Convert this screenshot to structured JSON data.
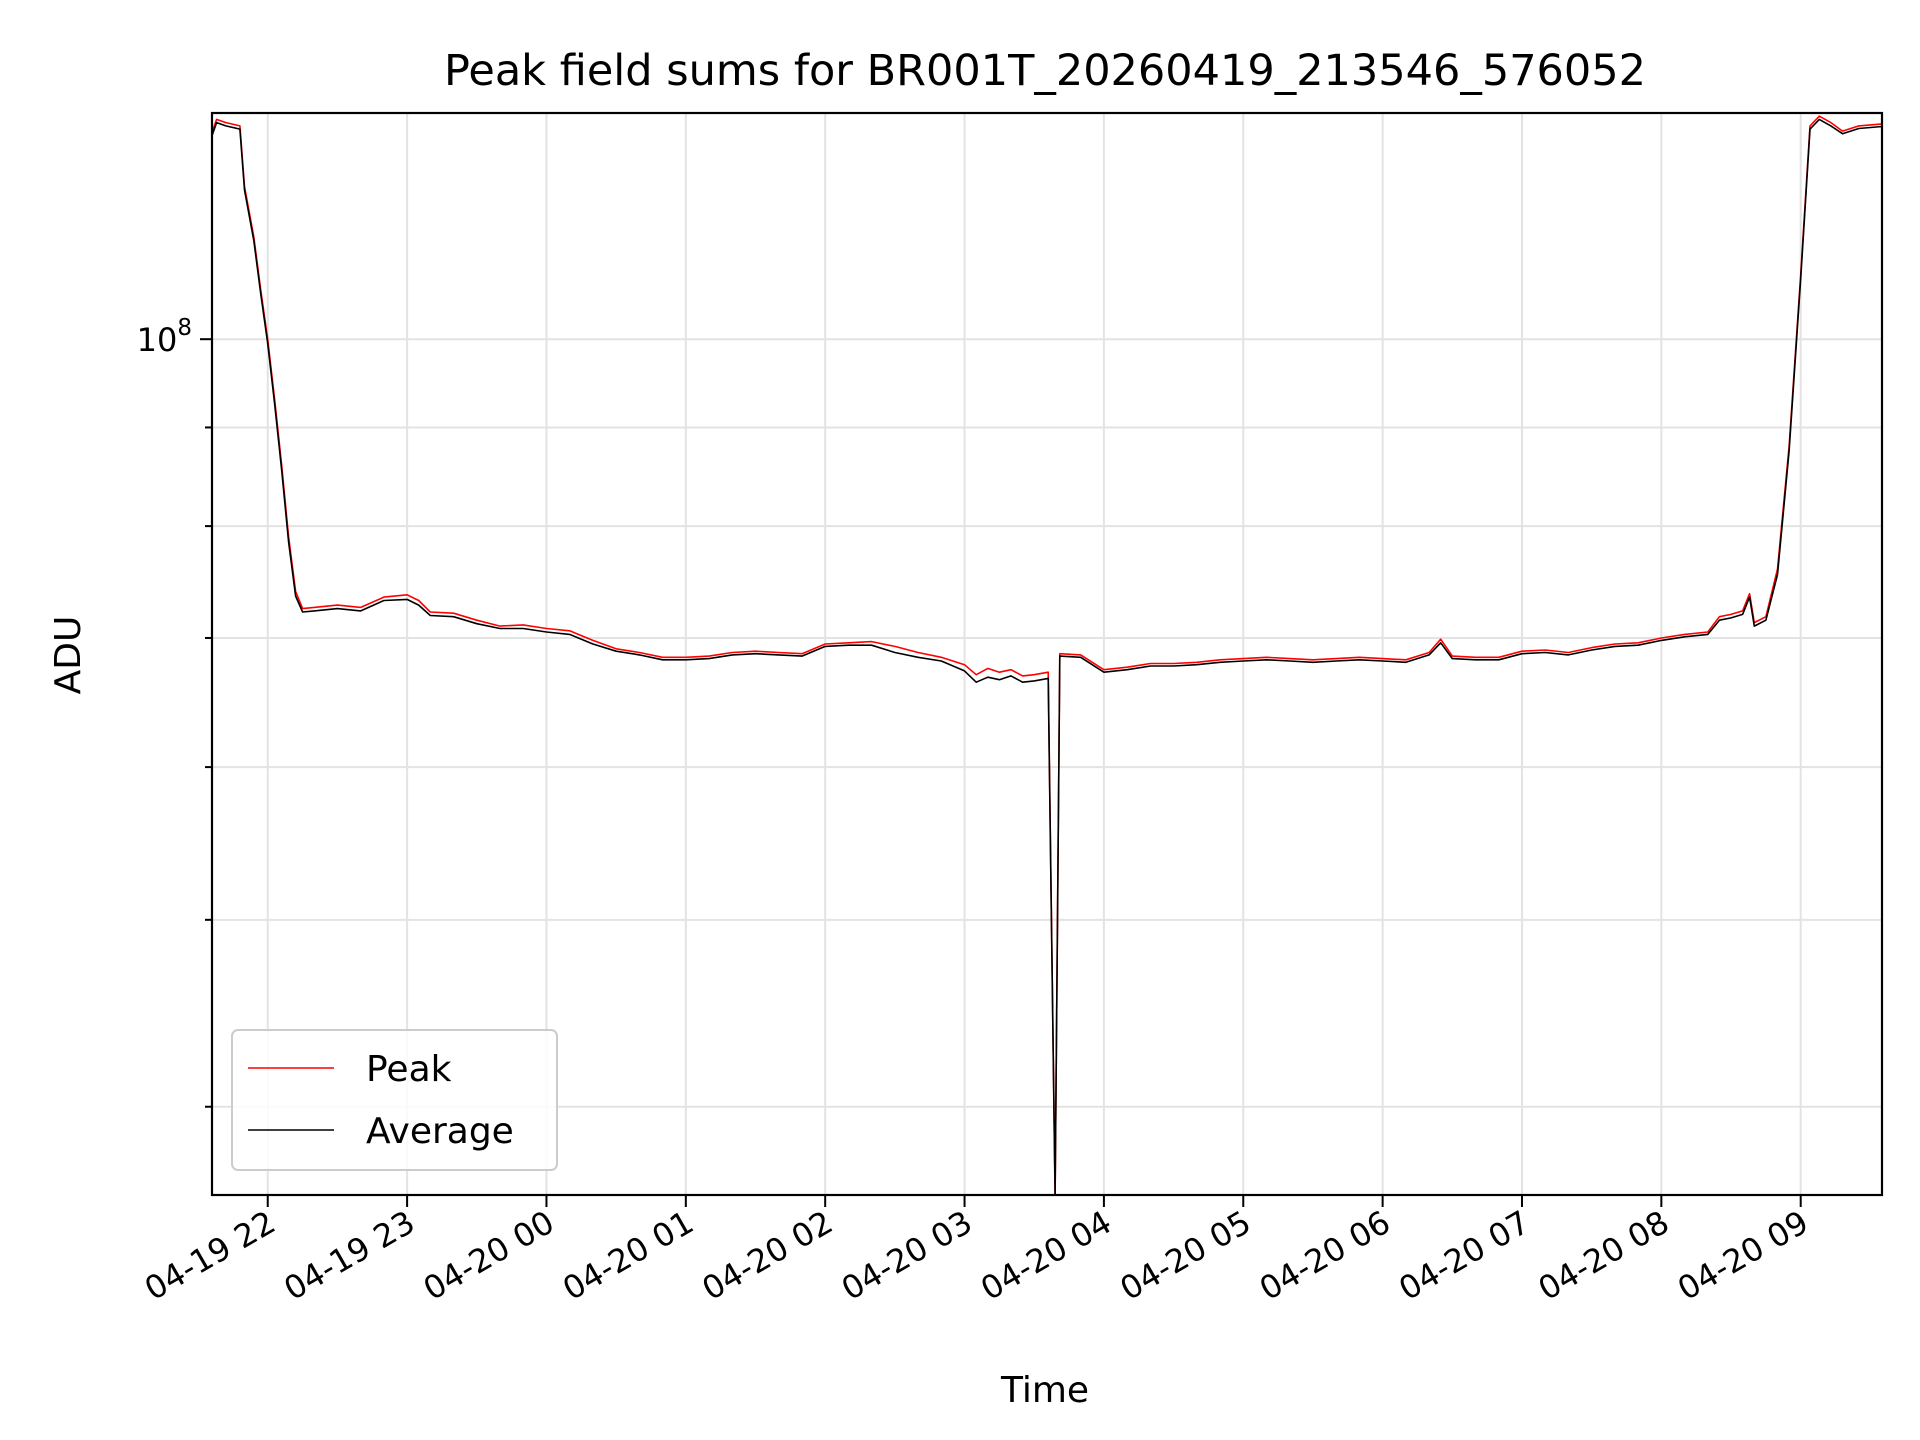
{
  "chart_data": {
    "type": "line",
    "title": "Peak field sums for BR001T_20260419_213546_576052",
    "xlabel": "Time",
    "ylabel": "ADU",
    "y_scale": "log",
    "xlim": [
      "2026-04-19 21:36",
      "2026-04-20 09:35"
    ],
    "ylim": [
      36000000,
      131000000
    ],
    "grid": true,
    "legend_position": "lower-left",
    "x_ticks": [
      "04-19 22",
      "04-19 23",
      "04-20 00",
      "04-20 01",
      "04-20 02",
      "04-20 03",
      "04-20 04",
      "04-20 05",
      "04-20 06",
      "04-20 07",
      "04-20 08",
      "04-20 09"
    ],
    "y_tick_labels": [
      {
        "base": "10",
        "exponent": "8",
        "value": 100000000
      }
    ],
    "series": [
      {
        "name": "Peak",
        "color": "#ff0000",
        "points": [
          [
            "2026-04-19 21:36",
            128000000
          ],
          [
            "2026-04-19 21:38",
            130000000
          ],
          [
            "2026-04-19 21:42",
            129500000
          ],
          [
            "2026-04-19 21:48",
            129000000
          ],
          [
            "2026-04-19 21:50",
            120000000
          ],
          [
            "2026-04-19 21:54",
            113000000
          ],
          [
            "2026-04-19 21:57",
            106000000
          ],
          [
            "2026-04-19 22:00",
            100000000
          ],
          [
            "2026-04-19 22:03",
            93000000
          ],
          [
            "2026-04-19 22:06",
            86000000
          ],
          [
            "2026-04-19 22:09",
            79000000
          ],
          [
            "2026-04-19 22:12",
            74000000
          ],
          [
            "2026-04-19 22:15",
            72500000
          ],
          [
            "2026-04-19 22:20",
            72600000
          ],
          [
            "2026-04-19 22:30",
            72800000
          ],
          [
            "2026-04-19 22:40",
            72600000
          ],
          [
            "2026-04-19 22:50",
            73500000
          ],
          [
            "2026-04-19 23:00",
            73700000
          ],
          [
            "2026-04-19 23:05",
            73200000
          ],
          [
            "2026-04-19 23:10",
            72200000
          ],
          [
            "2026-04-19 23:20",
            72100000
          ],
          [
            "2026-04-19 23:30",
            71500000
          ],
          [
            "2026-04-19 23:40",
            71000000
          ],
          [
            "2026-04-19 23:50",
            71100000
          ],
          [
            "2026-04-20 00:00",
            70800000
          ],
          [
            "2026-04-20 00:10",
            70600000
          ],
          [
            "2026-04-20 00:20",
            69800000
          ],
          [
            "2026-04-20 00:30",
            69100000
          ],
          [
            "2026-04-20 00:40",
            68800000
          ],
          [
            "2026-04-20 00:50",
            68400000
          ],
          [
            "2026-04-20 01:00",
            68400000
          ],
          [
            "2026-04-20 01:10",
            68500000
          ],
          [
            "2026-04-20 01:20",
            68800000
          ],
          [
            "2026-04-20 01:30",
            68900000
          ],
          [
            "2026-04-20 01:40",
            68800000
          ],
          [
            "2026-04-20 01:50",
            68700000
          ],
          [
            "2026-04-20 02:00",
            69500000
          ],
          [
            "2026-04-20 02:10",
            69600000
          ],
          [
            "2026-04-20 02:20",
            69700000
          ],
          [
            "2026-04-20 02:30",
            69300000
          ],
          [
            "2026-04-20 02:40",
            68800000
          ],
          [
            "2026-04-20 02:50",
            68400000
          ],
          [
            "2026-04-20 03:00",
            67800000
          ],
          [
            "2026-04-20 03:05",
            67000000
          ],
          [
            "2026-04-20 03:10",
            67500000
          ],
          [
            "2026-04-20 03:15",
            67200000
          ],
          [
            "2026-04-20 03:20",
            67400000
          ],
          [
            "2026-04-20 03:25",
            66900000
          ],
          [
            "2026-04-20 03:30",
            67000000
          ],
          [
            "2026-04-20 03:36",
            67200000
          ],
          [
            "2026-04-20 03:39",
            36000000
          ],
          [
            "2026-04-20 03:41",
            68700000
          ],
          [
            "2026-04-20 03:50",
            68600000
          ],
          [
            "2026-04-20 04:00",
            67400000
          ],
          [
            "2026-04-20 04:10",
            67600000
          ],
          [
            "2026-04-20 04:20",
            67900000
          ],
          [
            "2026-04-20 04:30",
            67900000
          ],
          [
            "2026-04-20 04:40",
            68000000
          ],
          [
            "2026-04-20 04:50",
            68200000
          ],
          [
            "2026-04-20 05:00",
            68300000
          ],
          [
            "2026-04-20 05:10",
            68400000
          ],
          [
            "2026-04-20 05:20",
            68300000
          ],
          [
            "2026-04-20 05:30",
            68200000
          ],
          [
            "2026-04-20 05:40",
            68300000
          ],
          [
            "2026-04-20 05:50",
            68400000
          ],
          [
            "2026-04-20 06:00",
            68300000
          ],
          [
            "2026-04-20 06:10",
            68200000
          ],
          [
            "2026-04-20 06:20",
            68800000
          ],
          [
            "2026-04-20 06:25",
            69900000
          ],
          [
            "2026-04-20 06:30",
            68500000
          ],
          [
            "2026-04-20 06:40",
            68400000
          ],
          [
            "2026-04-20 06:50",
            68400000
          ],
          [
            "2026-04-20 07:00",
            68900000
          ],
          [
            "2026-04-20 07:10",
            69000000
          ],
          [
            "2026-04-20 07:20",
            68800000
          ],
          [
            "2026-04-20 07:30",
            69200000
          ],
          [
            "2026-04-20 07:40",
            69500000
          ],
          [
            "2026-04-20 07:50",
            69600000
          ],
          [
            "2026-04-20 08:00",
            70000000
          ],
          [
            "2026-04-20 08:10",
            70300000
          ],
          [
            "2026-04-20 08:20",
            70500000
          ],
          [
            "2026-04-20 08:25",
            71800000
          ],
          [
            "2026-04-20 08:30",
            72000000
          ],
          [
            "2026-04-20 08:35",
            72300000
          ],
          [
            "2026-04-20 08:38",
            73800000
          ],
          [
            "2026-04-20 08:40",
            71300000
          ],
          [
            "2026-04-20 08:45",
            71800000
          ],
          [
            "2026-04-20 08:50",
            76000000
          ],
          [
            "2026-04-20 08:55",
            88000000
          ],
          [
            "2026-04-20 09:00",
            108000000
          ],
          [
            "2026-04-20 09:04",
            129000000
          ],
          [
            "2026-04-20 09:08",
            130500000
          ],
          [
            "2026-04-20 09:13",
            129500000
          ],
          [
            "2026-04-20 09:18",
            128200000
          ],
          [
            "2026-04-20 09:25",
            129000000
          ],
          [
            "2026-04-20 09:35",
            129300000
          ]
        ]
      },
      {
        "name": "Average",
        "color": "#000000",
        "points": [
          [
            "2026-04-19 21:36",
            127500000
          ],
          [
            "2026-04-19 21:38",
            129500000
          ],
          [
            "2026-04-19 21:42",
            129000000
          ],
          [
            "2026-04-19 21:48",
            128500000
          ],
          [
            "2026-04-19 21:50",
            119500000
          ],
          [
            "2026-04-19 21:54",
            112500000
          ],
          [
            "2026-04-19 21:57",
            105500000
          ],
          [
            "2026-04-19 22:00",
            99500000
          ],
          [
            "2026-04-19 22:03",
            92500000
          ],
          [
            "2026-04-19 22:06",
            85500000
          ],
          [
            "2026-04-19 22:09",
            78500000
          ],
          [
            "2026-04-19 22:12",
            73600000
          ],
          [
            "2026-04-19 22:15",
            72200000
          ],
          [
            "2026-04-19 22:20",
            72300000
          ],
          [
            "2026-04-19 22:30",
            72500000
          ],
          [
            "2026-04-19 22:40",
            72300000
          ],
          [
            "2026-04-19 22:50",
            73200000
          ],
          [
            "2026-04-19 23:00",
            73300000
          ],
          [
            "2026-04-19 23:05",
            72800000
          ],
          [
            "2026-04-19 23:10",
            71900000
          ],
          [
            "2026-04-19 23:20",
            71800000
          ],
          [
            "2026-04-19 23:30",
            71200000
          ],
          [
            "2026-04-19 23:40",
            70800000
          ],
          [
            "2026-04-19 23:50",
            70800000
          ],
          [
            "2026-04-20 00:00",
            70500000
          ],
          [
            "2026-04-20 00:10",
            70300000
          ],
          [
            "2026-04-20 00:20",
            69500000
          ],
          [
            "2026-04-20 00:30",
            68900000
          ],
          [
            "2026-04-20 00:40",
            68600000
          ],
          [
            "2026-04-20 00:50",
            68200000
          ],
          [
            "2026-04-20 01:00",
            68200000
          ],
          [
            "2026-04-20 01:10",
            68300000
          ],
          [
            "2026-04-20 01:20",
            68600000
          ],
          [
            "2026-04-20 01:30",
            68700000
          ],
          [
            "2026-04-20 01:40",
            68600000
          ],
          [
            "2026-04-20 01:50",
            68500000
          ],
          [
            "2026-04-20 02:00",
            69300000
          ],
          [
            "2026-04-20 02:10",
            69400000
          ],
          [
            "2026-04-20 02:20",
            69400000
          ],
          [
            "2026-04-20 02:30",
            68800000
          ],
          [
            "2026-04-20 02:40",
            68400000
          ],
          [
            "2026-04-20 02:50",
            68100000
          ],
          [
            "2026-04-20 03:00",
            67300000
          ],
          [
            "2026-04-20 03:05",
            66400000
          ],
          [
            "2026-04-20 03:10",
            66800000
          ],
          [
            "2026-04-20 03:15",
            66600000
          ],
          [
            "2026-04-20 03:20",
            66900000
          ],
          [
            "2026-04-20 03:25",
            66400000
          ],
          [
            "2026-04-20 03:30",
            66500000
          ],
          [
            "2026-04-20 03:36",
            66700000
          ],
          [
            "2026-04-20 03:39",
            36000000
          ],
          [
            "2026-04-20 03:41",
            68500000
          ],
          [
            "2026-04-20 03:50",
            68400000
          ],
          [
            "2026-04-20 04:00",
            67200000
          ],
          [
            "2026-04-20 04:10",
            67400000
          ],
          [
            "2026-04-20 04:20",
            67700000
          ],
          [
            "2026-04-20 04:30",
            67700000
          ],
          [
            "2026-04-20 04:40",
            67800000
          ],
          [
            "2026-04-20 04:50",
            68000000
          ],
          [
            "2026-04-20 05:00",
            68100000
          ],
          [
            "2026-04-20 05:10",
            68200000
          ],
          [
            "2026-04-20 05:20",
            68100000
          ],
          [
            "2026-04-20 05:30",
            68000000
          ],
          [
            "2026-04-20 05:40",
            68100000
          ],
          [
            "2026-04-20 05:50",
            68200000
          ],
          [
            "2026-04-20 06:00",
            68100000
          ],
          [
            "2026-04-20 06:10",
            68000000
          ],
          [
            "2026-04-20 06:20",
            68600000
          ],
          [
            "2026-04-20 06:25",
            69600000
          ],
          [
            "2026-04-20 06:30",
            68300000
          ],
          [
            "2026-04-20 06:40",
            68200000
          ],
          [
            "2026-04-20 06:50",
            68200000
          ],
          [
            "2026-04-20 07:00",
            68700000
          ],
          [
            "2026-04-20 07:10",
            68800000
          ],
          [
            "2026-04-20 07:20",
            68600000
          ],
          [
            "2026-04-20 07:30",
            69000000
          ],
          [
            "2026-04-20 07:40",
            69300000
          ],
          [
            "2026-04-20 07:50",
            69400000
          ],
          [
            "2026-04-20 08:00",
            69800000
          ],
          [
            "2026-04-20 08:10",
            70100000
          ],
          [
            "2026-04-20 08:20",
            70300000
          ],
          [
            "2026-04-20 08:25",
            71500000
          ],
          [
            "2026-04-20 08:30",
            71700000
          ],
          [
            "2026-04-20 08:35",
            72000000
          ],
          [
            "2026-04-20 08:38",
            73500000
          ],
          [
            "2026-04-20 08:40",
            71000000
          ],
          [
            "2026-04-20 08:45",
            71500000
          ],
          [
            "2026-04-20 08:50",
            75500000
          ],
          [
            "2026-04-20 08:55",
            87500000
          ],
          [
            "2026-04-20 09:00",
            107500000
          ],
          [
            "2026-04-20 09:04",
            128500000
          ],
          [
            "2026-04-20 09:08",
            130000000
          ],
          [
            "2026-04-20 09:13",
            129000000
          ],
          [
            "2026-04-20 09:18",
            127800000
          ],
          [
            "2026-04-20 09:25",
            128600000
          ],
          [
            "2026-04-20 09:35",
            128900000
          ]
        ]
      }
    ]
  }
}
